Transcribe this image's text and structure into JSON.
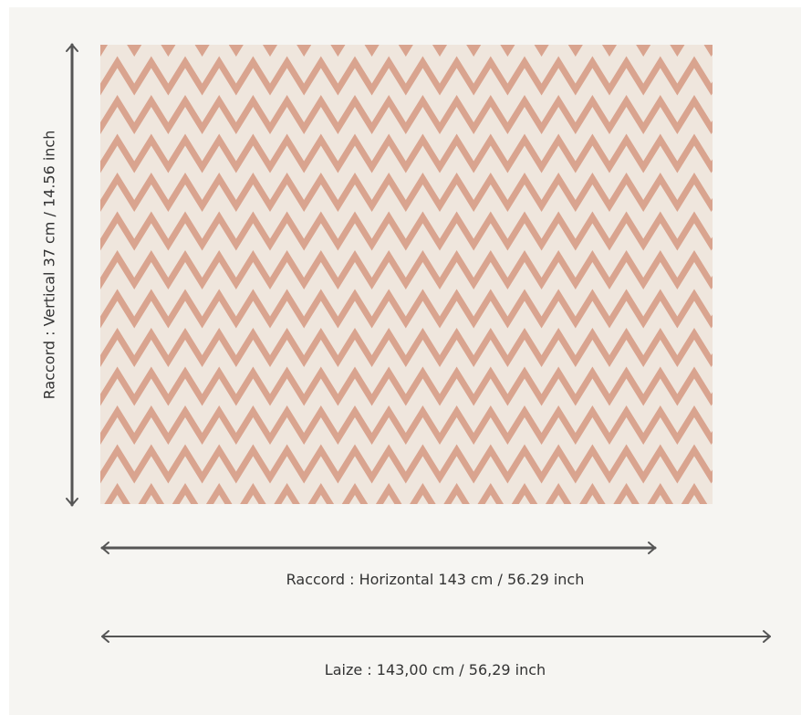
{
  "colors": {
    "background": "#f6f5f2",
    "fabric_base": "#efe6dd",
    "fabric_pattern": "#d9a48f",
    "arrow": "#555555",
    "text": "#333333"
  },
  "pattern": {
    "name": "chevron-zigzag"
  },
  "vertical_repeat": {
    "label": "Raccord : Vertical 37 cm / 14.56 inch"
  },
  "horizontal_repeat": {
    "label": "Raccord : Horizontal 143 cm / 56.29 inch"
  },
  "width": {
    "label": "Laize : 143,00 cm / 56,29 inch"
  }
}
